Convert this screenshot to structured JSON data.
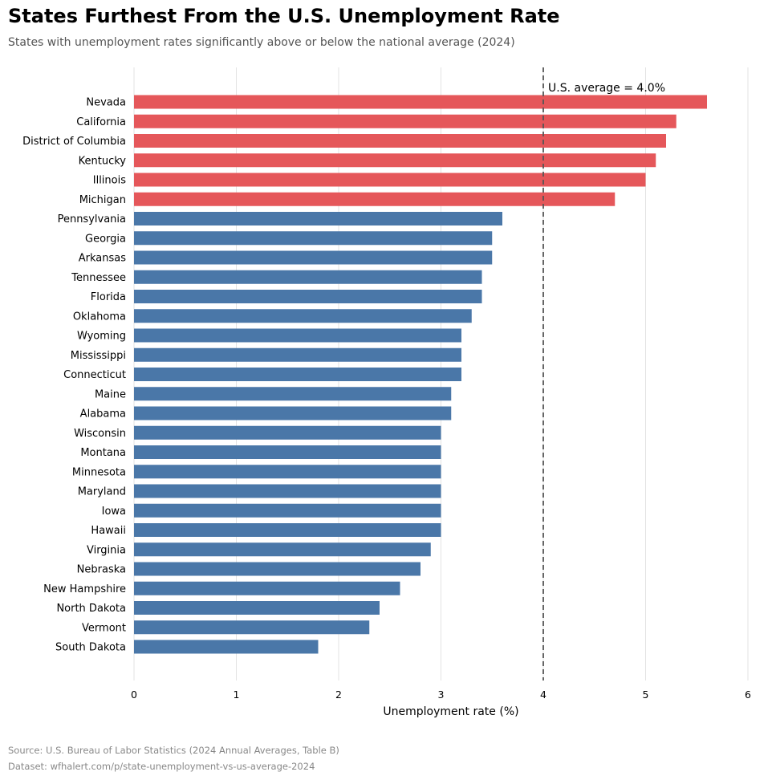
{
  "header": {
    "title": "States Furthest From the U.S. Unemployment Rate",
    "subtitle": "States with unemployment rates significantly above or below the national average (2024)"
  },
  "footer": {
    "source": "Source: U.S. Bureau of Labor Statistics (2024 Annual Averages, Table B)",
    "dataset": "Dataset: wfhalert.com/p/state-unemployment-vs-us-average-2024"
  },
  "colors": {
    "above": "#e5575a",
    "below": "#4a77a8",
    "reference_line": "#555555",
    "grid": "#e3e3e3"
  },
  "chart_data": {
    "type": "bar",
    "orientation": "horizontal",
    "categories": [
      "Nevada",
      "California",
      "District of Columbia",
      "Kentucky",
      "Illinois",
      "Michigan",
      "Pennsylvania",
      "Georgia",
      "Arkansas",
      "Tennessee",
      "Florida",
      "Oklahoma",
      "Wyoming",
      "Mississippi",
      "Connecticut",
      "Maine",
      "Alabama",
      "Wisconsin",
      "Montana",
      "Minnesota",
      "Maryland",
      "Iowa",
      "Hawaii",
      "Virginia",
      "Nebraska",
      "New Hampshire",
      "North Dakota",
      "Vermont",
      "South Dakota"
    ],
    "values": [
      5.6,
      5.3,
      5.2,
      5.1,
      5.0,
      4.7,
      3.6,
      3.5,
      3.5,
      3.4,
      3.4,
      3.3,
      3.2,
      3.2,
      3.2,
      3.1,
      3.1,
      3.0,
      3.0,
      3.0,
      3.0,
      3.0,
      3.0,
      2.9,
      2.8,
      2.6,
      2.4,
      2.3,
      1.8
    ],
    "xlabel": "Unemployment rate (%)",
    "ylabel": "",
    "xlim": [
      0,
      6
    ],
    "xticks": [
      0,
      1,
      2,
      3,
      4,
      5,
      6
    ],
    "grid": "vertical",
    "reference_line": {
      "value": 4.0,
      "label": "U.S. average = 4.0%",
      "style": "dashed"
    },
    "color_rule": "red above national average, blue below"
  }
}
